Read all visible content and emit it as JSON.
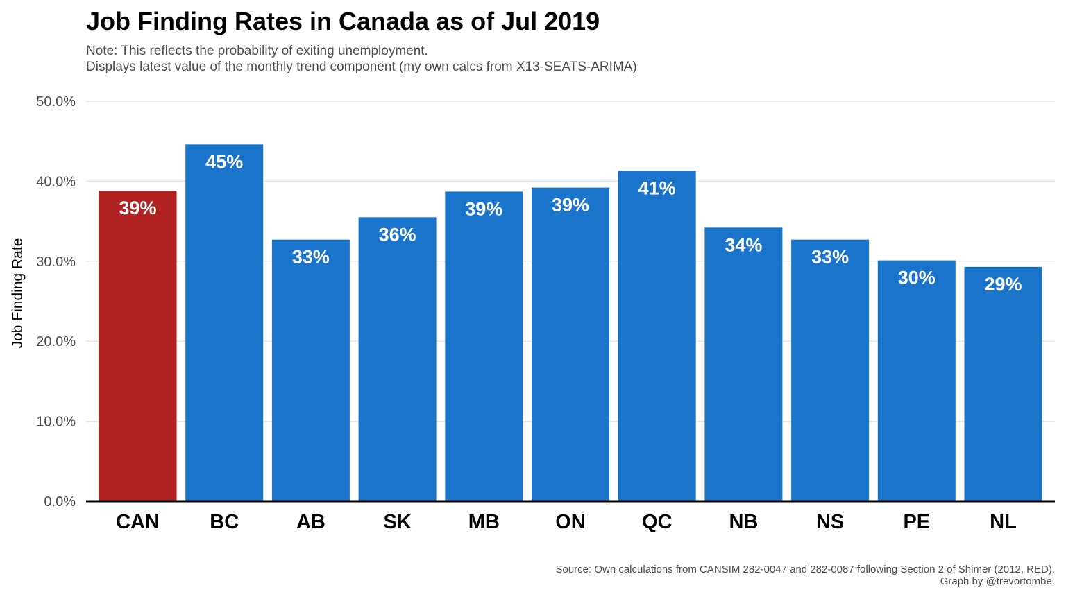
{
  "chart_data": {
    "type": "bar",
    "title": "Job Finding Rates in Canada as of Jul 2019",
    "subtitle": [
      "Note: This reflects the probability of exiting unemployment.",
      "Displays latest value of the monthly trend component (my own calcs from X13-SEATS-ARIMA)"
    ],
    "xlabel": "",
    "ylabel": "Job Finding Rate",
    "ylim": [
      0,
      50
    ],
    "yticks": [
      "0.0%",
      "10.0%",
      "20.0%",
      "30.0%",
      "40.0%",
      "50.0%"
    ],
    "ytick_values": [
      0,
      10,
      20,
      30,
      40,
      50
    ],
    "categories": [
      "CAN",
      "BC",
      "AB",
      "SK",
      "MB",
      "ON",
      "QC",
      "NB",
      "NS",
      "PE",
      "NL"
    ],
    "values": [
      38.8,
      44.6,
      32.7,
      35.5,
      38.7,
      39.2,
      41.3,
      34.2,
      32.7,
      30.1,
      29.3
    ],
    "data_labels": [
      "39%",
      "45%",
      "33%",
      "36%",
      "39%",
      "39%",
      "41%",
      "34%",
      "33%",
      "30%",
      "29%"
    ],
    "highlight_category": "CAN",
    "colors": {
      "highlight": "#b22222",
      "bar": "#1b74cc",
      "grid": "#e5e5e5",
      "axis": "#000000",
      "tick_text": "#4d4d4d"
    },
    "grid": true,
    "legend": "none",
    "caption": [
      "Source: Own calculations from CANSIM 282-0047 and 282-0087 following Section 2 of Shimer (2012, RED).",
      "Graph by @trevortombe."
    ]
  }
}
